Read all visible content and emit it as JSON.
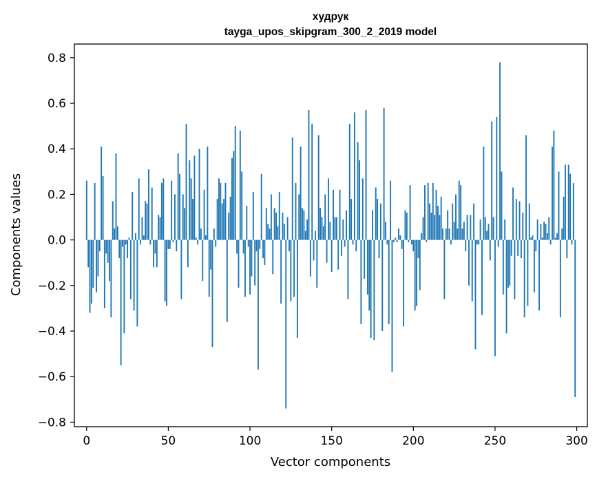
{
  "chart_data": {
    "type": "bar",
    "title": "худрук",
    "subtitle": "tayga_upos_skipgram_300_2_2019 model",
    "xlabel": "Vector components",
    "ylabel": "Components values",
    "xlim": [
      -7.5,
      306.5
    ],
    "ylim": [
      -0.82,
      0.86
    ],
    "xticks": [
      0,
      50,
      100,
      150,
      200,
      250,
      300
    ],
    "yticks": [
      -0.8,
      -0.6,
      -0.4,
      -0.2,
      0.0,
      0.2,
      0.4,
      0.6,
      0.8
    ],
    "ytick_labels": [
      "−0.8",
      "−0.6",
      "−0.4",
      "−0.2",
      "0.0",
      "0.2",
      "0.4",
      "0.6",
      "0.8"
    ],
    "bar_color": "#1f77b4",
    "grid": false,
    "values": [
      0.26,
      -0.12,
      -0.32,
      -0.28,
      -0.21,
      0.25,
      -0.23,
      -0.16,
      -0.05,
      0.41,
      0.28,
      -0.3,
      -0.06,
      -0.1,
      -0.18,
      -0.34,
      0.17,
      0.05,
      0.38,
      0.06,
      -0.08,
      -0.55,
      -0.03,
      -0.41,
      -0.02,
      -0.08,
      0.01,
      -0.26,
      0.21,
      -0.31,
      0.03,
      -0.38,
      0.27,
      -0.02,
      0.1,
      0.02,
      0.17,
      0.16,
      0.31,
      -0.02,
      0.23,
      -0.12,
      -0.06,
      -0.12,
      0.11,
      0.1,
      0.25,
      0.27,
      -0.27,
      -0.29,
      -0.04,
      -0.04,
      0.26,
      -0.01,
      0.2,
      -0.05,
      0.38,
      0.29,
      -0.26,
      0.2,
      0.14,
      0.51,
      -0.12,
      0.35,
      0.27,
      0.18,
      0.37,
      0.01,
      -0.02,
      0.4,
      0.05,
      -0.18,
      0.22,
      0.02,
      0.41,
      -0.25,
      -0.13,
      -0.47,
      0.05,
      -0.03,
      0.18,
      0.27,
      0.25,
      0.16,
      0.18,
      0.25,
      -0.36,
      0.12,
      0.19,
      0.36,
      0.39,
      0.5,
      -0.06,
      -0.21,
      0.48,
      0.3,
      -0.06,
      -0.25,
      0.15,
      -0.03,
      -0.24,
      -0.16,
      0.21,
      -0.2,
      -0.05,
      -0.57,
      -0.04,
      0.29,
      -0.08,
      -0.11,
      0.14,
      0.07,
      0.05,
      0.2,
      -0.15,
      0.14,
      0.12,
      0.06,
      0.21,
      -0.28,
      0.12,
      0.07,
      -0.74,
      0.1,
      -0.05,
      -0.27,
      0.45,
      -0.25,
      0.25,
      -0.43,
      0.2,
      0.41,
      0.14,
      0.13,
      0.04,
      0.09,
      0.57,
      -0.16,
      0.51,
      -0.09,
      0.04,
      -0.21,
      0.46,
      0.14,
      0.1,
      0.06,
      0.2,
      -0.1,
      0.27,
      0.08,
      -0.14,
      0.22,
      0.1,
      0.1,
      -0.13,
      0.22,
      -0.07,
      0.09,
      -0.03,
      0.13,
      -0.26,
      0.51,
      0.18,
      -0.02,
      0.56,
      -0.05,
      0.43,
      0.35,
      -0.37,
      0.27,
      -0.17,
      0.57,
      -0.24,
      -0.31,
      -0.43,
      0.13,
      -0.44,
      0.23,
      0.18,
      -0.08,
      0.16,
      -0.4,
      0.58,
      0.08,
      -0.02,
      -0.37,
      0.26,
      -0.58,
      -0.01,
      0.01,
      -0.01,
      0.05,
      0.02,
      -0.04,
      -0.38,
      0.13,
      0.12,
      -0.01,
      0.24,
      -0.02,
      -0.05,
      -0.31,
      -0.29,
      -0.08,
      -0.22,
      0.03,
      0.1,
      0.24,
      -0.01,
      0.25,
      0.16,
      0.12,
      0.25,
      0.11,
      0.22,
      0.15,
      0.11,
      0.19,
      0.05,
      -0.26,
      0.05,
      0.13,
      0.05,
      -0.02,
      0.16,
      0.08,
      0.2,
      0.05,
      0.26,
      0.24,
      0.05,
      0.08,
      -0.05,
      0.11,
      -0.2,
      0.11,
      -0.27,
      0.16,
      -0.48,
      -0.02,
      -0.02,
      0.09,
      -0.33,
      0.41,
      0.1,
      0.04,
      0.07,
      -0.09,
      0.52,
      0.1,
      -0.51,
      0.54,
      -0.03,
      0.78,
      0.3,
      -0.24,
      0.09,
      -0.41,
      -0.21,
      -0.2,
      -0.07,
      0.23,
      -0.26,
      0.18,
      -0.07,
      0.17,
      -0.08,
      0.12,
      -0.34,
      0.46,
      -0.29,
      0.16,
      0.01,
      0.02,
      -0.23,
      -0.05,
      0.09,
      -0.31,
      0.07,
      0.01,
      0.08,
      0.07,
      0.03,
      0.1,
      -0.02,
      0.41,
      0.48,
      0.01,
      0.03,
      0.3,
      -0.34,
      0.05,
      0.19,
      0.33,
      -0.08,
      0.33,
      0.29,
      -0.02,
      0.25,
      -0.69
    ]
  }
}
